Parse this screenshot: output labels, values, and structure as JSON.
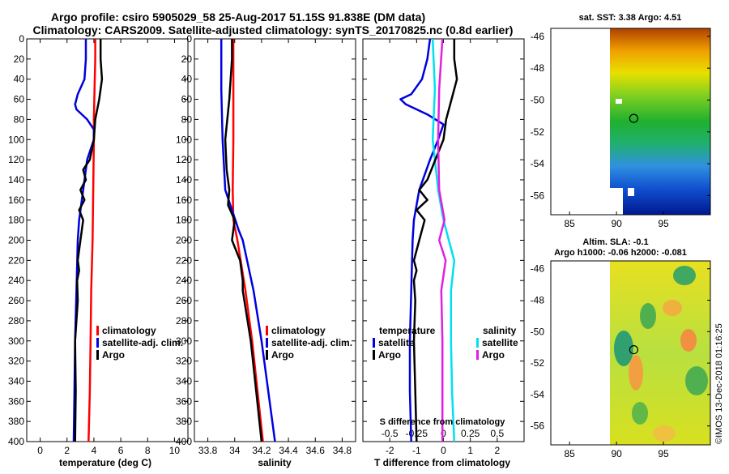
{
  "title_line1": "Argo profile: csiro 5905029_58 25-Aug-2017 51.15S 91.838E (DM data)",
  "title_line2": "Climatology: CARS2009. Satellite-adjusted climatology: synTS_20170825.nc (0.8d earlier)",
  "watermark": "©IMOS 13-Dec-2018 01:16:25",
  "colors": {
    "climatology": "#ff0000",
    "satellite": "#0000e0",
    "argo": "#000000",
    "salinity_sat": "#00e0f0",
    "salinity_argo": "#e020e0"
  },
  "chart_data": [
    {
      "id": "temperature",
      "type": "line",
      "xlabel": "temperature (deg C)",
      "xlim": [
        -1,
        11
      ],
      "xticks": [
        "0",
        "2",
        "4",
        "6",
        "8",
        "10"
      ],
      "xtick_values": [
        0,
        2,
        4,
        6,
        8,
        10
      ],
      "ylim": [
        0,
        400
      ],
      "yticks": [
        "0",
        "20",
        "40",
        "60",
        "80",
        "100",
        "120",
        "140",
        "160",
        "180",
        "200",
        "220",
        "240",
        "260",
        "280",
        "300",
        "320",
        "340",
        "360",
        "380",
        "400"
      ],
      "legend": [
        "climatology",
        "satellite-adj. clim.",
        "Argo"
      ],
      "series": [
        {
          "name": "climatology",
          "depth": [
            0,
            20,
            50,
            80,
            100,
            150,
            200,
            250,
            300,
            350,
            400
          ],
          "values": [
            4.1,
            4.1,
            4.05,
            4.0,
            4.0,
            3.95,
            3.9,
            3.8,
            3.75,
            3.7,
            3.6
          ]
        },
        {
          "name": "satellite-adj. clim.",
          "depth": [
            0,
            20,
            40,
            55,
            65,
            70,
            80,
            90,
            100,
            120,
            150,
            180,
            200,
            250,
            300,
            350,
            400
          ],
          "values": [
            3.4,
            3.4,
            3.3,
            2.8,
            2.6,
            2.7,
            3.5,
            4.0,
            4.0,
            3.5,
            3.2,
            2.9,
            2.8,
            2.7,
            2.6,
            2.55,
            2.5
          ]
        },
        {
          "name": "Argo",
          "depth": [
            0,
            20,
            40,
            60,
            80,
            100,
            120,
            130,
            140,
            150,
            160,
            170,
            180,
            200,
            220,
            230,
            240,
            260,
            300,
            350,
            400
          ],
          "values": [
            4.5,
            4.5,
            4.6,
            4.4,
            4.1,
            4.0,
            3.7,
            3.2,
            3.4,
            3.0,
            3.3,
            2.9,
            3.2,
            3.0,
            2.8,
            2.9,
            2.75,
            2.8,
            2.6,
            2.65,
            2.6
          ]
        }
      ]
    },
    {
      "id": "salinity",
      "type": "line",
      "xlabel": "salinity",
      "xlim": [
        33.7,
        34.9
      ],
      "xticks": [
        "33.8",
        "34",
        "34.2",
        "34.4",
        "34.6",
        "34.8"
      ],
      "xtick_values": [
        33.8,
        34.0,
        34.2,
        34.4,
        34.6,
        34.8
      ],
      "ylim": [
        0,
        400
      ],
      "yticks": [
        "0",
        "20",
        "40",
        "60",
        "80",
        "100",
        "120",
        "140",
        "160",
        "180",
        "200",
        "220",
        "240",
        "260",
        "280",
        "300",
        "320",
        "340",
        "360",
        "380",
        "400"
      ],
      "legend": [
        "climatology",
        "satellite-adj. clim.",
        "Argo"
      ],
      "series": [
        {
          "name": "climatology",
          "depth": [
            0,
            50,
            100,
            150,
            180,
            200,
            250,
            300,
            350,
            400
          ],
          "values": [
            33.99,
            33.99,
            33.99,
            33.985,
            33.99,
            34.02,
            34.08,
            34.13,
            34.17,
            34.21
          ]
        },
        {
          "name": "satellite-adj. clim.",
          "depth": [
            0,
            50,
            100,
            150,
            170,
            190,
            200,
            250,
            300,
            350,
            400
          ],
          "values": [
            33.9,
            33.9,
            33.91,
            33.93,
            33.98,
            34.03,
            34.06,
            34.14,
            34.2,
            34.25,
            34.3
          ]
        },
        {
          "name": "Argo",
          "depth": [
            0,
            20,
            60,
            100,
            130,
            150,
            165,
            180,
            200,
            220,
            240,
            250,
            300,
            350,
            400
          ],
          "values": [
            33.98,
            33.98,
            33.96,
            33.93,
            33.94,
            33.96,
            33.95,
            34.0,
            33.98,
            34.04,
            34.06,
            34.06,
            34.12,
            34.16,
            34.2
          ]
        }
      ]
    },
    {
      "id": "difference",
      "type": "line",
      "xlabel": "T difference from climatology",
      "xlim": [
        -3,
        3
      ],
      "xticks": [
        "-2",
        "-1",
        "0",
        "1",
        "2"
      ],
      "xtick_values": [
        -2,
        -1,
        0,
        1,
        2
      ],
      "top_label": "S difference from climatology",
      "sticks": [
        "-0.5",
        "-0.25",
        "0",
        "0.25",
        "0.5"
      ],
      "stick_values": [
        -0.5,
        -0.25,
        0,
        0.25,
        0.5
      ],
      "legend_temperature": "temperature",
      "legend_salinity": "salinity",
      "legend_satellite": "satellite",
      "legend_argo": "Argo",
      "ylim": [
        0,
        400
      ],
      "series": [
        {
          "name": "temperature satellite",
          "color_key": "satellite",
          "depth": [
            0,
            20,
            40,
            55,
            60,
            65,
            75,
            85,
            100,
            120,
            150,
            180,
            200,
            250,
            300,
            350,
            400
          ],
          "values": [
            -0.5,
            -0.6,
            -0.8,
            -1.2,
            -1.6,
            -1.4,
            -0.6,
            0.0,
            -0.2,
            -0.5,
            -0.9,
            -1.1,
            -1.15,
            -1.2,
            -1.25,
            -1.25,
            -1.2
          ]
        },
        {
          "name": "salinity satellite",
          "color_key": "salinity_sat",
          "depth": [
            0,
            50,
            100,
            150,
            180,
            200,
            220,
            250,
            300,
            350,
            400
          ],
          "values": [
            -0.1,
            -0.08,
            -0.1,
            -0.05,
            0.0,
            0.05,
            0.1,
            0.07,
            0.07,
            0.08,
            0.1
          ]
        },
        {
          "name": "temperature Argo",
          "color_key": "argo",
          "depth": [
            0,
            20,
            40,
            60,
            80,
            100,
            120,
            140,
            150,
            160,
            170,
            180,
            200,
            220,
            230,
            240,
            260,
            300,
            350,
            400
          ],
          "values": [
            0.4,
            0.4,
            0.5,
            0.3,
            0.1,
            0.0,
            -0.3,
            -0.6,
            -0.9,
            -0.6,
            -1.0,
            -0.7,
            -0.9,
            -1.1,
            -1.0,
            -1.1,
            -1.05,
            -1.1,
            -1.05,
            -1.0
          ]
        },
        {
          "name": "salinity Argo",
          "color_key": "salinity_argo",
          "depth": [
            0,
            50,
            100,
            150,
            180,
            200,
            220,
            250,
            300,
            350,
            400
          ],
          "values": [
            -0.01,
            -0.04,
            -0.05,
            -0.04,
            0.01,
            -0.04,
            0.02,
            -0.02,
            -0.01,
            -0.01,
            -0.01
          ]
        }
      ]
    },
    {
      "id": "sst_map",
      "type": "heatmap",
      "title": "sat. SST: 3.38 Argo: 4.51",
      "xticks": [
        "85",
        "90",
        "95"
      ],
      "xtick_values": [
        85,
        90,
        95
      ],
      "yticks": [
        "-46",
        "-48",
        "-50",
        "-52",
        "-54",
        "-56"
      ],
      "ytick_values": [
        -46,
        -48,
        -50,
        -52,
        -54,
        -56
      ],
      "xlim": [
        83,
        100
      ],
      "ylim": [
        -57.2,
        -45.5
      ],
      "data_xlim": [
        90,
        100
      ],
      "marker": {
        "lon": 91.84,
        "lat": -51.15
      }
    },
    {
      "id": "sla_map",
      "type": "heatmap",
      "title": "Altim. SLA: -0.1",
      "subtitle": "Argo h1000: -0.06 h2000: -0.081",
      "xticks": [
        "85",
        "90",
        "95"
      ],
      "xtick_values": [
        85,
        90,
        95
      ],
      "yticks": [
        "-46",
        "-48",
        "-50",
        "-52",
        "-54",
        "-56"
      ],
      "ytick_values": [
        -46,
        -48,
        -50,
        -52,
        -54,
        -56
      ],
      "xlim": [
        83,
        100
      ],
      "ylim": [
        -57.2,
        -45.5
      ],
      "data_xlim": [
        90,
        100
      ],
      "marker": {
        "lon": 91.84,
        "lat": -51.15
      }
    }
  ]
}
